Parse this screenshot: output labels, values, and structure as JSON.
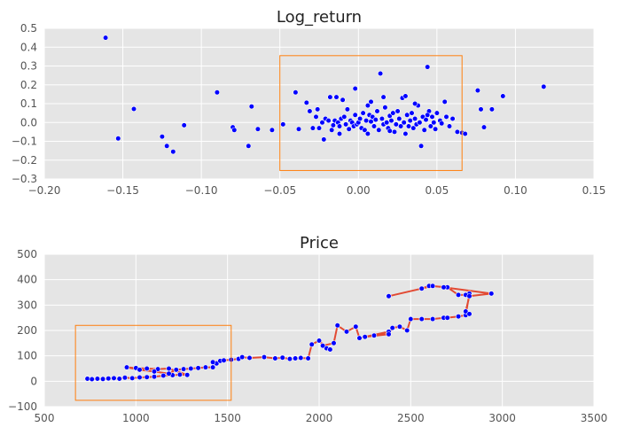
{
  "chart_data": [
    {
      "type": "scatter",
      "title": "Log_return",
      "xlabel": "",
      "ylabel": "",
      "xlim": [
        -0.2,
        0.15
      ],
      "ylim": [
        -0.3,
        0.5
      ],
      "xticks": [
        "−0.20",
        "−0.15",
        "−0.10",
        "−0.05",
        "0.00",
        "0.05",
        "0.10",
        "0.15"
      ],
      "yticks": [
        "−0.3",
        "−0.2",
        "−0.1",
        "0.0",
        "0.1",
        "0.2",
        "0.3",
        "0.4",
        "0.5"
      ],
      "grid": true,
      "background": "#e5e5e5",
      "point_color": "#0000ff",
      "highlight_box": {
        "x": [
          -0.05,
          0.066
        ],
        "y": [
          -0.255,
          0.355
        ],
        "color": "#ff7f0e"
      },
      "points": [
        [
          -0.161,
          0.45
        ],
        [
          -0.153,
          -0.085
        ],
        [
          -0.143,
          0.072
        ],
        [
          -0.125,
          -0.075
        ],
        [
          -0.122,
          -0.125
        ],
        [
          -0.118,
          -0.155
        ],
        [
          -0.111,
          -0.015
        ],
        [
          -0.09,
          0.16
        ],
        [
          -0.08,
          -0.025
        ],
        [
          -0.079,
          -0.04
        ],
        [
          -0.07,
          -0.125
        ],
        [
          -0.068,
          0.085
        ],
        [
          -0.064,
          -0.035
        ],
        [
          -0.055,
          -0.04
        ],
        [
          -0.048,
          -0.01
        ],
        [
          -0.04,
          0.16
        ],
        [
          -0.038,
          -0.035
        ],
        [
          -0.033,
          0.105
        ],
        [
          -0.031,
          0.06
        ],
        [
          -0.029,
          -0.03
        ],
        [
          -0.027,
          0.03
        ],
        [
          -0.025,
          -0.03
        ],
        [
          -0.023,
          0.0
        ],
        [
          -0.022,
          -0.09
        ],
        [
          -0.021,
          0.02
        ],
        [
          -0.019,
          0.01
        ],
        [
          -0.018,
          0.135
        ],
        [
          -0.017,
          -0.04
        ],
        [
          -0.016,
          -0.015
        ],
        [
          -0.015,
          0.01
        ],
        [
          -0.014,
          0.135
        ],
        [
          -0.013,
          0.0
        ],
        [
          -0.012,
          -0.06
        ],
        [
          -0.011,
          0.02
        ],
        [
          -0.01,
          0.12
        ],
        [
          -0.009,
          0.03
        ],
        [
          -0.008,
          -0.01
        ],
        [
          -0.007,
          0.07
        ],
        [
          -0.006,
          -0.035
        ],
        [
          -0.005,
          0.01
        ],
        [
          -0.004,
          0.0
        ],
        [
          -0.003,
          -0.02
        ],
        [
          -0.002,
          0.04
        ],
        [
          -0.001,
          -0.01
        ],
        [
          0.0,
          0.0
        ],
        [
          0.001,
          0.02
        ],
        [
          0.002,
          -0.03
        ],
        [
          0.003,
          0.05
        ],
        [
          0.004,
          -0.04
        ],
        [
          0.005,
          0.01
        ],
        [
          0.006,
          -0.06
        ],
        [
          0.007,
          0.04
        ],
        [
          0.008,
          0.005
        ],
        [
          0.009,
          0.03
        ],
        [
          0.01,
          -0.02
        ],
        [
          0.011,
          0.015
        ],
        [
          0.012,
          0.06
        ],
        [
          0.013,
          -0.04
        ],
        [
          0.014,
          0.26
        ],
        [
          0.015,
          0.02
        ],
        [
          0.016,
          -0.01
        ],
        [
          0.017,
          0.08
        ],
        [
          0.018,
          0.0
        ],
        [
          0.019,
          -0.03
        ],
        [
          0.02,
          0.035
        ],
        [
          0.021,
          0.01
        ],
        [
          0.022,
          0.05
        ],
        [
          0.023,
          -0.05
        ],
        [
          0.024,
          -0.01
        ],
        [
          0.025,
          0.06
        ],
        [
          0.026,
          0.02
        ],
        [
          0.027,
          -0.02
        ],
        [
          0.028,
          0.13
        ],
        [
          0.029,
          0.0
        ],
        [
          0.03,
          -0.06
        ],
        [
          0.031,
          0.04
        ],
        [
          0.032,
          -0.02
        ],
        [
          0.033,
          0.01
        ],
        [
          0.034,
          0.05
        ],
        [
          0.035,
          -0.03
        ],
        [
          0.036,
          0.02
        ],
        [
          0.037,
          -0.01
        ],
        [
          0.038,
          0.09
        ],
        [
          0.039,
          0.0
        ],
        [
          0.04,
          -0.125
        ],
        [
          0.041,
          0.03
        ],
        [
          0.042,
          -0.04
        ],
        [
          0.043,
          0.015
        ],
        [
          0.044,
          0.295
        ],
        [
          0.045,
          0.06
        ],
        [
          0.046,
          -0.02
        ],
        [
          0.047,
          0.03
        ],
        [
          0.048,
          0.0
        ],
        [
          0.049,
          -0.035
        ],
        [
          0.05,
          0.05
        ],
        [
          0.052,
          0.01
        ],
        [
          0.053,
          -0.005
        ],
        [
          0.055,
          0.11
        ],
        [
          0.056,
          0.03
        ],
        [
          0.058,
          -0.02
        ],
        [
          0.06,
          0.02
        ],
        [
          0.063,
          -0.05
        ],
        [
          0.066,
          -0.055
        ],
        [
          0.068,
          -0.06
        ],
        [
          0.076,
          0.17
        ],
        [
          0.078,
          0.07
        ],
        [
          0.08,
          -0.025
        ],
        [
          0.085,
          0.07
        ],
        [
          0.092,
          0.14
        ],
        [
          0.118,
          0.19
        ],
        [
          -0.002,
          0.18
        ],
        [
          0.016,
          0.135
        ],
        [
          0.03,
          0.14
        ],
        [
          -0.026,
          0.07
        ],
        [
          0.006,
          0.09
        ],
        [
          0.036,
          0.1
        ],
        [
          -0.012,
          -0.02
        ],
        [
          0.02,
          -0.045
        ],
        [
          0.044,
          0.04
        ],
        [
          0.008,
          0.11
        ]
      ]
    },
    {
      "type": "line",
      "title": "Price",
      "xlabel": "",
      "ylabel": "",
      "xlim": [
        500,
        3500
      ],
      "ylim": [
        -100,
        500
      ],
      "xticks": [
        "500",
        "1000",
        "1500",
        "2000",
        "2500",
        "3000",
        "3500"
      ],
      "yticks": [
        "−100",
        "0",
        "100",
        "200",
        "300",
        "400",
        "500"
      ],
      "grid": true,
      "background": "#e5e5e5",
      "point_color": "#0000ff",
      "line_color": "#e24a33",
      "highlight_box": {
        "x": [
          670,
          1520
        ],
        "y": [
          -75,
          220
        ],
        "color": "#ff7f0e"
      },
      "points": [
        [
          735,
          10
        ],
        [
          760,
          8
        ],
        [
          790,
          10
        ],
        [
          820,
          9
        ],
        [
          850,
          11
        ],
        [
          880,
          12
        ],
        [
          910,
          10
        ],
        [
          940,
          14
        ],
        [
          980,
          12
        ],
        [
          1020,
          15
        ],
        [
          1060,
          16
        ],
        [
          1100,
          18
        ],
        [
          1150,
          22
        ],
        [
          1200,
          24
        ],
        [
          1240,
          26
        ],
        [
          1280,
          25
        ],
        [
          1180,
          50
        ],
        [
          1120,
          48
        ],
        [
          1060,
          50
        ],
        [
          1000,
          52
        ],
        [
          950,
          55
        ],
        [
          1020,
          45
        ],
        [
          1100,
          38
        ],
        [
          1180,
          30
        ],
        [
          1220,
          45
        ],
        [
          1260,
          48
        ],
        [
          1300,
          50
        ],
        [
          1340,
          52
        ],
        [
          1380,
          55
        ],
        [
          1420,
          55
        ],
        [
          1440,
          70
        ],
        [
          1460,
          80
        ],
        [
          1420,
          75
        ],
        [
          1480,
          82
        ],
        [
          1520,
          85
        ],
        [
          1560,
          88
        ],
        [
          1580,
          95
        ],
        [
          1620,
          92
        ],
        [
          1700,
          95
        ],
        [
          1760,
          90
        ],
        [
          1800,
          93
        ],
        [
          1840,
          88
        ],
        [
          1870,
          90
        ],
        [
          1900,
          92
        ],
        [
          1940,
          90
        ],
        [
          1960,
          145
        ],
        [
          2000,
          160
        ],
        [
          2040,
          130
        ],
        [
          2060,
          125
        ],
        [
          2020,
          140
        ],
        [
          2080,
          150
        ],
        [
          2100,
          220
        ],
        [
          2150,
          195
        ],
        [
          2200,
          215
        ],
        [
          2220,
          170
        ],
        [
          2300,
          180
        ],
        [
          2380,
          195
        ],
        [
          2250,
          175
        ],
        [
          2380,
          185
        ],
        [
          2400,
          210
        ],
        [
          2440,
          215
        ],
        [
          2480,
          200
        ],
        [
          2500,
          245
        ],
        [
          2560,
          245
        ],
        [
          2620,
          245
        ],
        [
          2680,
          250
        ],
        [
          2700,
          250
        ],
        [
          2760,
          255
        ],
        [
          2800,
          260
        ],
        [
          2820,
          345
        ],
        [
          2800,
          340
        ],
        [
          2760,
          340
        ],
        [
          2700,
          370
        ],
        [
          2600,
          375
        ],
        [
          2560,
          365
        ],
        [
          2380,
          335
        ],
        [
          2620,
          375
        ],
        [
          2680,
          370
        ],
        [
          2940,
          345
        ],
        [
          2820,
          335
        ],
        [
          2800,
          275
        ],
        [
          2820,
          265
        ]
      ]
    }
  ]
}
